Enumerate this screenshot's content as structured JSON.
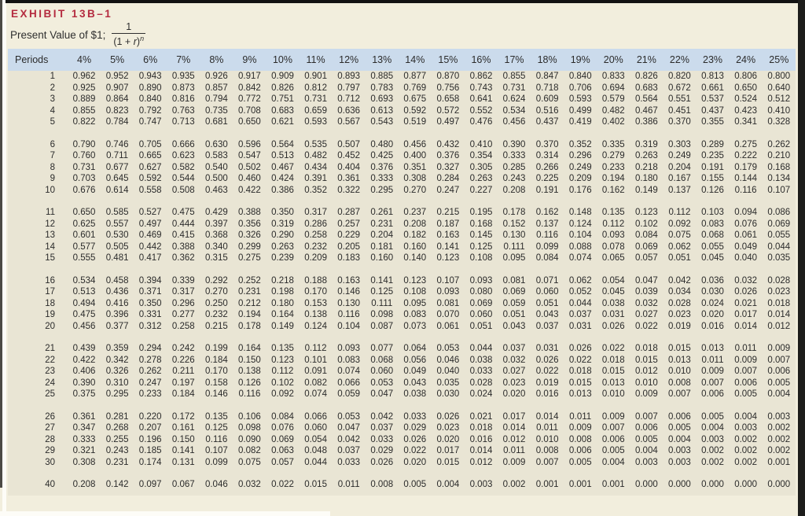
{
  "exhibit": {
    "label": "EXHIBIT 13B–1",
    "subtitle": "Present Value of $1;",
    "formula": {
      "numerator": "1",
      "den_open": "(1 + ",
      "den_var": "r",
      "den_close": ")",
      "exponent": "n"
    }
  },
  "colors": {
    "accent_red": "#b42b3f",
    "header_blue": "#cbdbec",
    "page_bg": "#f2eedd",
    "table_body_bg": "#e9e5d4"
  },
  "table": {
    "period_header": "Periods",
    "rate_headers": [
      "4%",
      "5%",
      "6%",
      "7%",
      "8%",
      "9%",
      "10%",
      "11%",
      "12%",
      "13%",
      "14%",
      "15%",
      "16%",
      "17%",
      "18%",
      "19%",
      "20%",
      "21%",
      "22%",
      "23%",
      "24%",
      "25%"
    ],
    "groups": [
      {
        "rows": [
          {
            "p": "1",
            "v": [
              "0.962",
              "0.952",
              "0.943",
              "0.935",
              "0.926",
              "0.917",
              "0.909",
              "0.901",
              "0.893",
              "0.885",
              "0.877",
              "0.870",
              "0.862",
              "0.855",
              "0.847",
              "0.840",
              "0.833",
              "0.826",
              "0.820",
              "0.813",
              "0.806",
              "0.800"
            ]
          },
          {
            "p": "2",
            "v": [
              "0.925",
              "0.907",
              "0.890",
              "0.873",
              "0.857",
              "0.842",
              "0.826",
              "0.812",
              "0.797",
              "0.783",
              "0.769",
              "0.756",
              "0.743",
              "0.731",
              "0.718",
              "0.706",
              "0.694",
              "0.683",
              "0.672",
              "0.661",
              "0.650",
              "0.640"
            ]
          },
          {
            "p": "3",
            "v": [
              "0.889",
              "0.864",
              "0.840",
              "0.816",
              "0.794",
              "0.772",
              "0.751",
              "0.731",
              "0.712",
              "0.693",
              "0.675",
              "0.658",
              "0.641",
              "0.624",
              "0.609",
              "0.593",
              "0.579",
              "0.564",
              "0.551",
              "0.537",
              "0.524",
              "0.512"
            ]
          },
          {
            "p": "4",
            "v": [
              "0.855",
              "0.823",
              "0.792",
              "0.763",
              "0.735",
              "0.708",
              "0.683",
              "0.659",
              "0.636",
              "0.613",
              "0.592",
              "0.572",
              "0.552",
              "0.534",
              "0.516",
              "0.499",
              "0.482",
              "0.467",
              "0.451",
              "0.437",
              "0.423",
              "0.410"
            ]
          },
          {
            "p": "5",
            "v": [
              "0.822",
              "0.784",
              "0.747",
              "0.713",
              "0.681",
              "0.650",
              "0.621",
              "0.593",
              "0.567",
              "0.543",
              "0.519",
              "0.497",
              "0.476",
              "0.456",
              "0.437",
              "0.419",
              "0.402",
              "0.386",
              "0.370",
              "0.355",
              "0.341",
              "0.328"
            ]
          }
        ]
      },
      {
        "rows": [
          {
            "p": "6",
            "v": [
              "0.790",
              "0.746",
              "0.705",
              "0.666",
              "0.630",
              "0.596",
              "0.564",
              "0.535",
              "0.507",
              "0.480",
              "0.456",
              "0.432",
              "0.410",
              "0.390",
              "0.370",
              "0.352",
              "0.335",
              "0.319",
              "0.303",
              "0.289",
              "0.275",
              "0.262"
            ]
          },
          {
            "p": "7",
            "v": [
              "0.760",
              "0.711",
              "0.665",
              "0.623",
              "0.583",
              "0.547",
              "0.513",
              "0.482",
              "0.452",
              "0.425",
              "0.400",
              "0.376",
              "0.354",
              "0.333",
              "0.314",
              "0.296",
              "0.279",
              "0.263",
              "0.249",
              "0.235",
              "0.222",
              "0.210"
            ]
          },
          {
            "p": "8",
            "v": [
              "0.731",
              "0.677",
              "0.627",
              "0.582",
              "0.540",
              "0.502",
              "0.467",
              "0.434",
              "0.404",
              "0.376",
              "0.351",
              "0.327",
              "0.305",
              "0.285",
              "0.266",
              "0.249",
              "0.233",
              "0.218",
              "0.204",
              "0.191",
              "0.179",
              "0.168"
            ]
          },
          {
            "p": "9",
            "v": [
              "0.703",
              "0.645",
              "0.592",
              "0.544",
              "0.500",
              "0.460",
              "0.424",
              "0.391",
              "0.361",
              "0.333",
              "0.308",
              "0.284",
              "0.263",
              "0.243",
              "0.225",
              "0.209",
              "0.194",
              "0.180",
              "0.167",
              "0.155",
              "0.144",
              "0.134"
            ]
          },
          {
            "p": "10",
            "v": [
              "0.676",
              "0.614",
              "0.558",
              "0.508",
              "0.463",
              "0.422",
              "0.386",
              "0.352",
              "0.322",
              "0.295",
              "0.270",
              "0.247",
              "0.227",
              "0.208",
              "0.191",
              "0.176",
              "0.162",
              "0.149",
              "0.137",
              "0.126",
              "0.116",
              "0.107"
            ]
          }
        ]
      },
      {
        "rows": [
          {
            "p": "11",
            "v": [
              "0.650",
              "0.585",
              "0.527",
              "0.475",
              "0.429",
              "0.388",
              "0.350",
              "0.317",
              "0.287",
              "0.261",
              "0.237",
              "0.215",
              "0.195",
              "0.178",
              "0.162",
              "0.148",
              "0.135",
              "0.123",
              "0.112",
              "0.103",
              "0.094",
              "0.086"
            ]
          },
          {
            "p": "12",
            "v": [
              "0.625",
              "0.557",
              "0.497",
              "0.444",
              "0.397",
              "0.356",
              "0.319",
              "0.286",
              "0.257",
              "0.231",
              "0.208",
              "0.187",
              "0.168",
              "0.152",
              "0.137",
              "0.124",
              "0.112",
              "0.102",
              "0.092",
              "0.083",
              "0.076",
              "0.069"
            ]
          },
          {
            "p": "13",
            "v": [
              "0.601",
              "0.530",
              "0.469",
              "0.415",
              "0.368",
              "0.326",
              "0.290",
              "0.258",
              "0.229",
              "0.204",
              "0.182",
              "0.163",
              "0.145",
              "0.130",
              "0.116",
              "0.104",
              "0.093",
              "0.084",
              "0.075",
              "0.068",
              "0.061",
              "0.055"
            ]
          },
          {
            "p": "14",
            "v": [
              "0.577",
              "0.505",
              "0.442",
              "0.388",
              "0.340",
              "0.299",
              "0.263",
              "0.232",
              "0.205",
              "0.181",
              "0.160",
              "0.141",
              "0.125",
              "0.111",
              "0.099",
              "0.088",
              "0.078",
              "0.069",
              "0.062",
              "0.055",
              "0.049",
              "0.044"
            ]
          },
          {
            "p": "15",
            "v": [
              "0.555",
              "0.481",
              "0.417",
              "0.362",
              "0.315",
              "0.275",
              "0.239",
              "0.209",
              "0.183",
              "0.160",
              "0.140",
              "0.123",
              "0.108",
              "0.095",
              "0.084",
              "0.074",
              "0.065",
              "0.057",
              "0.051",
              "0.045",
              "0.040",
              "0.035"
            ]
          }
        ]
      },
      {
        "rows": [
          {
            "p": "16",
            "v": [
              "0.534",
              "0.458",
              "0.394",
              "0.339",
              "0.292",
              "0.252",
              "0.218",
              "0.188",
              "0.163",
              "0.141",
              "0.123",
              "0.107",
              "0.093",
              "0.081",
              "0.071",
              "0.062",
              "0.054",
              "0.047",
              "0.042",
              "0.036",
              "0.032",
              "0.028"
            ]
          },
          {
            "p": "17",
            "v": [
              "0.513",
              "0.436",
              "0.371",
              "0.317",
              "0.270",
              "0.231",
              "0.198",
              "0.170",
              "0.146",
              "0.125",
              "0.108",
              "0.093",
              "0.080",
              "0.069",
              "0.060",
              "0.052",
              "0.045",
              "0.039",
              "0.034",
              "0.030",
              "0.026",
              "0.023"
            ]
          },
          {
            "p": "18",
            "v": [
              "0.494",
              "0.416",
              "0.350",
              "0.296",
              "0.250",
              "0.212",
              "0.180",
              "0.153",
              "0.130",
              "0.111",
              "0.095",
              "0.081",
              "0.069",
              "0.059",
              "0.051",
              "0.044",
              "0.038",
              "0.032",
              "0.028",
              "0.024",
              "0.021",
              "0.018"
            ]
          },
          {
            "p": "19",
            "v": [
              "0.475",
              "0.396",
              "0.331",
              "0.277",
              "0.232",
              "0.194",
              "0.164",
              "0.138",
              "0.116",
              "0.098",
              "0.083",
              "0.070",
              "0.060",
              "0.051",
              "0.043",
              "0.037",
              "0.031",
              "0.027",
              "0.023",
              "0.020",
              "0.017",
              "0.014"
            ]
          },
          {
            "p": "20",
            "v": [
              "0.456",
              "0.377",
              "0.312",
              "0.258",
              "0.215",
              "0.178",
              "0.149",
              "0.124",
              "0.104",
              "0.087",
              "0.073",
              "0.061",
              "0.051",
              "0.043",
              "0.037",
              "0.031",
              "0.026",
              "0.022",
              "0.019",
              "0.016",
              "0.014",
              "0.012"
            ]
          }
        ]
      },
      {
        "rows": [
          {
            "p": "21",
            "v": [
              "0.439",
              "0.359",
              "0.294",
              "0.242",
              "0.199",
              "0.164",
              "0.135",
              "0.112",
              "0.093",
              "0.077",
              "0.064",
              "0.053",
              "0.044",
              "0.037",
              "0.031",
              "0.026",
              "0.022",
              "0.018",
              "0.015",
              "0.013",
              "0.011",
              "0.009"
            ]
          },
          {
            "p": "22",
            "v": [
              "0.422",
              "0.342",
              "0.278",
              "0.226",
              "0.184",
              "0.150",
              "0.123",
              "0.101",
              "0.083",
              "0.068",
              "0.056",
              "0.046",
              "0.038",
              "0.032",
              "0.026",
              "0.022",
              "0.018",
              "0.015",
              "0.013",
              "0.011",
              "0.009",
              "0.007"
            ]
          },
          {
            "p": "23",
            "v": [
              "0.406",
              "0.326",
              "0.262",
              "0.211",
              "0.170",
              "0.138",
              "0.112",
              "0.091",
              "0.074",
              "0.060",
              "0.049",
              "0.040",
              "0.033",
              "0.027",
              "0.022",
              "0.018",
              "0.015",
              "0.012",
              "0.010",
              "0.009",
              "0.007",
              "0.006"
            ]
          },
          {
            "p": "24",
            "v": [
              "0.390",
              "0.310",
              "0.247",
              "0.197",
              "0.158",
              "0.126",
              "0.102",
              "0.082",
              "0.066",
              "0.053",
              "0.043",
              "0.035",
              "0.028",
              "0.023",
              "0.019",
              "0.015",
              "0.013",
              "0.010",
              "0.008",
              "0.007",
              "0.006",
              "0.005"
            ]
          },
          {
            "p": "25",
            "v": [
              "0.375",
              "0.295",
              "0.233",
              "0.184",
              "0.146",
              "0.116",
              "0.092",
              "0.074",
              "0.059",
              "0.047",
              "0.038",
              "0.030",
              "0.024",
              "0.020",
              "0.016",
              "0.013",
              "0.010",
              "0.009",
              "0.007",
              "0.006",
              "0.005",
              "0.004"
            ]
          }
        ]
      },
      {
        "rows": [
          {
            "p": "26",
            "v": [
              "0.361",
              "0.281",
              "0.220",
              "0.172",
              "0.135",
              "0.106",
              "0.084",
              "0.066",
              "0.053",
              "0.042",
              "0.033",
              "0.026",
              "0.021",
              "0.017",
              "0.014",
              "0.011",
              "0.009",
              "0.007",
              "0.006",
              "0.005",
              "0.004",
              "0.003"
            ]
          },
          {
            "p": "27",
            "v": [
              "0.347",
              "0.268",
              "0.207",
              "0.161",
              "0.125",
              "0.098",
              "0.076",
              "0.060",
              "0.047",
              "0.037",
              "0.029",
              "0.023",
              "0.018",
              "0.014",
              "0.011",
              "0.009",
              "0.007",
              "0.006",
              "0.005",
              "0.004",
              "0.003",
              "0.002"
            ]
          },
          {
            "p": "28",
            "v": [
              "0.333",
              "0.255",
              "0.196",
              "0.150",
              "0.116",
              "0.090",
              "0.069",
              "0.054",
              "0.042",
              "0.033",
              "0.026",
              "0.020",
              "0.016",
              "0.012",
              "0.010",
              "0.008",
              "0.006",
              "0.005",
              "0.004",
              "0.003",
              "0.002",
              "0.002"
            ]
          },
          {
            "p": "29",
            "v": [
              "0.321",
              "0.243",
              "0.185",
              "0.141",
              "0.107",
              "0.082",
              "0.063",
              "0.048",
              "0.037",
              "0.029",
              "0.022",
              "0.017",
              "0.014",
              "0.011",
              "0.008",
              "0.006",
              "0.005",
              "0.004",
              "0.003",
              "0.002",
              "0.002",
              "0.002"
            ]
          },
          {
            "p": "30",
            "v": [
              "0.308",
              "0.231",
              "0.174",
              "0.131",
              "0.099",
              "0.075",
              "0.057",
              "0.044",
              "0.033",
              "0.026",
              "0.020",
              "0.015",
              "0.012",
              "0.009",
              "0.007",
              "0.005",
              "0.004",
              "0.003",
              "0.003",
              "0.002",
              "0.002",
              "0.001"
            ]
          }
        ]
      },
      {
        "rows": [
          {
            "p": "40",
            "v": [
              "0.208",
              "0.142",
              "0.097",
              "0.067",
              "0.046",
              "0.032",
              "0.022",
              "0.015",
              "0.011",
              "0.008",
              "0.005",
              "0.004",
              "0.003",
              "0.002",
              "0.001",
              "0.001",
              "0.001",
              "0.000",
              "0.000",
              "0.000",
              "0.000",
              "0.000"
            ]
          }
        ]
      }
    ]
  }
}
